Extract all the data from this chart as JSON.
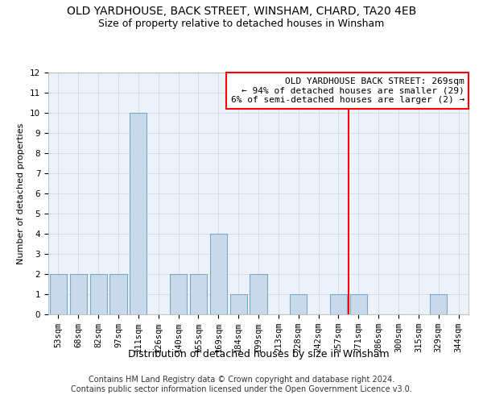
{
  "title": "OLD YARDHOUSE, BACK STREET, WINSHAM, CHARD, TA20 4EB",
  "subtitle": "Size of property relative to detached houses in Winsham",
  "xlabel": "Distribution of detached houses by size in Winsham",
  "ylabel": "Number of detached properties",
  "categories": [
    "53sqm",
    "68sqm",
    "82sqm",
    "97sqm",
    "111sqm",
    "126sqm",
    "140sqm",
    "155sqm",
    "169sqm",
    "184sqm",
    "199sqm",
    "213sqm",
    "228sqm",
    "242sqm",
    "257sqm",
    "271sqm",
    "286sqm",
    "300sqm",
    "315sqm",
    "329sqm",
    "344sqm"
  ],
  "values": [
    2,
    2,
    2,
    2,
    10,
    0,
    2,
    2,
    4,
    1,
    2,
    0,
    1,
    0,
    1,
    1,
    0,
    0,
    0,
    1,
    0
  ],
  "bar_color": "#c8d9ea",
  "bar_edgecolor": "#7aaac8",
  "vline_x_index": 15,
  "vline_color": "red",
  "annotation_text": "OLD YARDHOUSE BACK STREET: 269sqm\n← 94% of detached houses are smaller (29)\n6% of semi-detached houses are larger (2) →",
  "annotation_box_color": "white",
  "annotation_box_edgecolor": "red",
  "ylim": [
    0,
    12
  ],
  "yticks": [
    0,
    1,
    2,
    3,
    4,
    5,
    6,
    7,
    8,
    9,
    10,
    11,
    12
  ],
  "footer1": "Contains HM Land Registry data © Crown copyright and database right 2024.",
  "footer2": "Contains public sector information licensed under the Open Government Licence v3.0.",
  "grid_color": "#d0d8e8",
  "bg_color": "#edf2fa",
  "title_fontsize": 10,
  "subtitle_fontsize": 9,
  "xlabel_fontsize": 9,
  "ylabel_fontsize": 8,
  "tick_fontsize": 7.5,
  "annotation_fontsize": 8,
  "footer_fontsize": 7
}
